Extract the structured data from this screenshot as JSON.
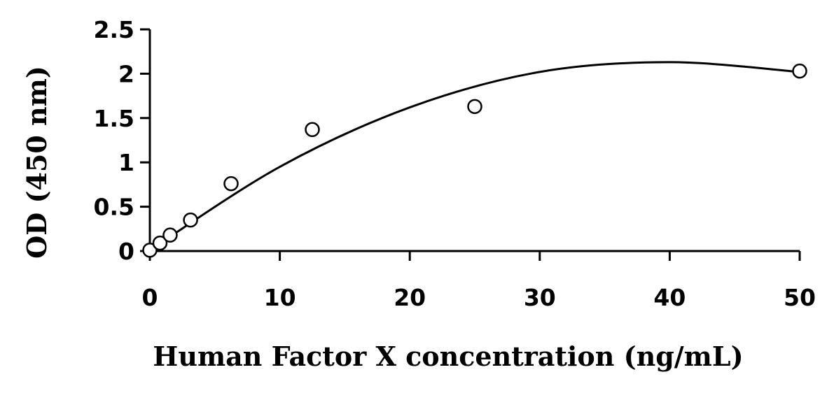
{
  "chart_data": {
    "type": "scatter",
    "title": "",
    "xlabel": "Human Factor X concentration (ng/mL)",
    "ylabel": "OD (450 nm)",
    "xlim": [
      0,
      50
    ],
    "ylim": [
      0,
      2.5
    ],
    "x_ticks": [
      0,
      10,
      20,
      30,
      40,
      50
    ],
    "x_tick_labels": [
      "0",
      "10",
      "20",
      "30",
      "40",
      "50"
    ],
    "y_ticks": [
      0,
      0.5,
      1,
      1.5,
      2,
      2.5
    ],
    "y_tick_labels": [
      "0",
      "0.5",
      "1",
      "1.5",
      "2",
      "2.5"
    ],
    "grid": false,
    "legend": "none",
    "series": [
      {
        "marker": "open-circle",
        "x": [
          0,
          0.78,
          1.56,
          3.13,
          6.25,
          12.5,
          25,
          50
        ],
        "y": [
          0.01,
          0.09,
          0.18,
          0.35,
          0.76,
          1.37,
          1.63,
          2.03
        ]
      }
    ],
    "trendline": {
      "type": "polynomial-fit",
      "x_range": [
        0,
        50
      ],
      "points": [
        [
          0,
          0.01
        ],
        [
          10,
          0.95
        ],
        [
          20,
          1.62
        ],
        [
          30,
          2.02
        ],
        [
          40,
          2.13
        ],
        [
          50,
          2.02
        ]
      ]
    },
    "colors": {
      "marker_stroke": "#000000",
      "line": "#000000",
      "axis": "#000000"
    }
  }
}
